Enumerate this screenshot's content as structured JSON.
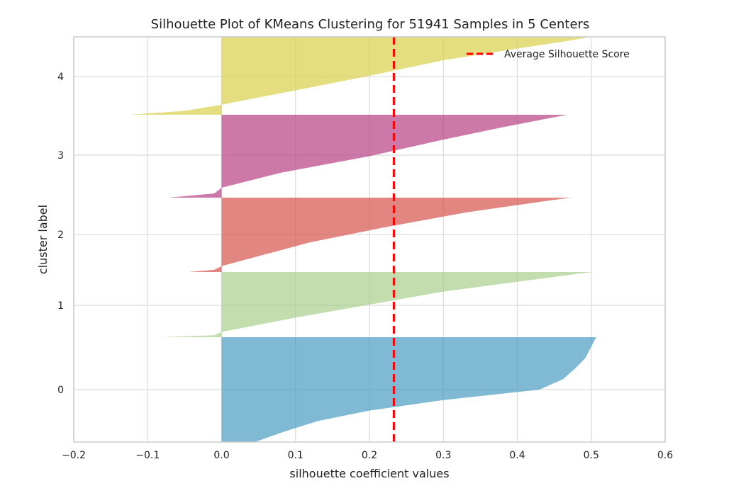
{
  "chart_data": {
    "type": "area",
    "title": "Silhouette Plot of KMeans Clustering for 51941 Samples in 5 Centers",
    "xlabel": "silhouette coefficient values",
    "ylabel": "cluster label",
    "xlim": [
      -0.2,
      0.6
    ],
    "x_ticks": [
      "−0.2",
      "−0.1",
      "0.0",
      "0.1",
      "0.2",
      "0.3",
      "0.4",
      "0.5",
      "0.6"
    ],
    "x_tick_values": [
      -0.2,
      -0.1,
      0.0,
      0.1,
      0.2,
      0.3,
      0.4,
      0.5,
      0.6
    ],
    "y_ticks": [
      "0",
      "1",
      "2",
      "3",
      "4"
    ],
    "grid": true,
    "legend_position": "top-right",
    "average_silhouette_score": 0.233,
    "average_label": "Average Silhouette Score",
    "average_color": "#ff0000",
    "clusters": [
      {
        "label": "0",
        "color": "#4a9bc2",
        "profile": [
          [
            0.0,
            0.045
          ],
          [
            0.1,
            0.085
          ],
          [
            0.2,
            0.13
          ],
          [
            0.3,
            0.2
          ],
          [
            0.4,
            0.3
          ],
          [
            0.5,
            0.43
          ],
          [
            0.6,
            0.462
          ],
          [
            0.7,
            0.478
          ],
          [
            0.8,
            0.492
          ],
          [
            0.95,
            0.503
          ],
          [
            1.0,
            0.507
          ]
        ]
      },
      {
        "label": "1",
        "color": "#a9cf8c",
        "profile": [
          [
            0.0,
            -0.082
          ],
          [
            0.03,
            -0.01
          ],
          [
            0.08,
            0.0
          ],
          [
            0.3,
            0.1
          ],
          [
            0.5,
            0.2
          ],
          [
            0.7,
            0.3
          ],
          [
            0.85,
            0.4
          ],
          [
            0.97,
            0.48
          ],
          [
            1.0,
            0.502
          ]
        ]
      },
      {
        "label": "2",
        "color": "#d6534b",
        "profile": [
          [
            0.0,
            -0.045
          ],
          [
            0.03,
            -0.01
          ],
          [
            0.08,
            0.0
          ],
          [
            0.4,
            0.12
          ],
          [
            0.6,
            0.22
          ],
          [
            0.8,
            0.33
          ],
          [
            0.9,
            0.4
          ],
          [
            0.97,
            0.45
          ],
          [
            1.0,
            0.473
          ]
        ]
      },
      {
        "label": "3",
        "color": "#b73f83",
        "profile": [
          [
            0.0,
            -0.072
          ],
          [
            0.05,
            -0.01
          ],
          [
            0.12,
            0.0
          ],
          [
            0.3,
            0.08
          ],
          [
            0.5,
            0.2
          ],
          [
            0.7,
            0.3
          ],
          [
            0.85,
            0.38
          ],
          [
            0.97,
            0.45
          ],
          [
            1.0,
            0.468
          ]
        ]
      },
      {
        "label": "4",
        "color": "#d9d04a",
        "profile": [
          [
            0.0,
            -0.125
          ],
          [
            0.05,
            -0.05
          ],
          [
            0.13,
            0.0
          ],
          [
            0.35,
            0.12
          ],
          [
            0.5,
            0.2
          ],
          [
            0.7,
            0.3
          ],
          [
            0.85,
            0.4
          ],
          [
            0.95,
            0.47
          ],
          [
            1.0,
            0.5
          ]
        ]
      }
    ]
  }
}
